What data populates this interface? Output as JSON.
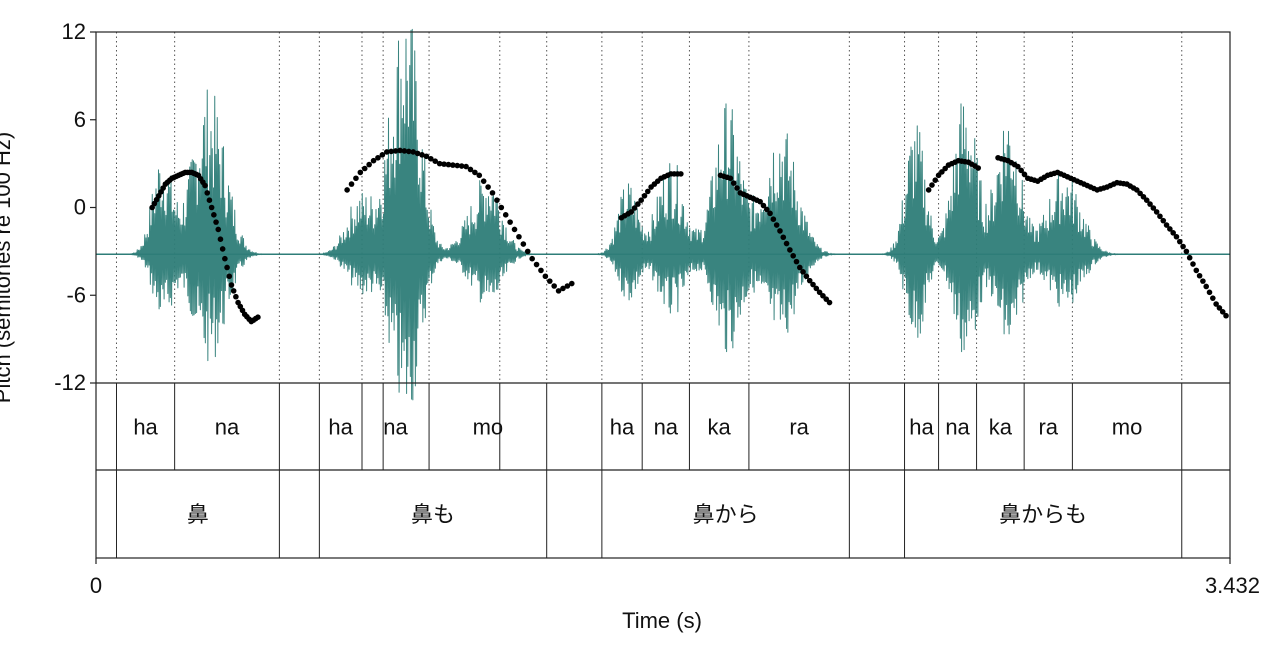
{
  "chart_data": {
    "type": "line",
    "xlabel": "Time (s)",
    "ylabel": "Pitch (semitones re 100 Hz)",
    "xlim": [
      0,
      3.432
    ],
    "ylim": [
      -12,
      12
    ],
    "x_tick_labels": [
      "0",
      "3.432"
    ],
    "y_ticks": [
      12,
      6,
      0,
      -6,
      -12
    ],
    "y_tick_labels": [
      "12",
      "6",
      "0",
      "-6",
      "-12"
    ],
    "grid": false,
    "waveform_color": "#2e7d78",
    "pitch_color": "#000000",
    "waveform_baseline": -3.2,
    "waveform_bursts": [
      {
        "t": 0.2,
        "w": 0.03,
        "a": 8.5
      },
      {
        "t": 0.33,
        "w": 0.045,
        "a": 11.5
      },
      {
        "t": 0.38,
        "w": 0.04,
        "a": 4.0
      },
      {
        "t": 0.8,
        "w": 0.04,
        "a": 5.0
      },
      {
        "t": 0.92,
        "w": 0.04,
        "a": 15.0
      },
      {
        "t": 0.96,
        "w": 0.035,
        "a": 9.0
      },
      {
        "t": 1.17,
        "w": 0.05,
        "a": 5.0
      },
      {
        "t": 1.2,
        "w": 0.03,
        "a": 2.5
      },
      {
        "t": 1.61,
        "w": 0.03,
        "a": 6.0
      },
      {
        "t": 1.74,
        "w": 0.04,
        "a": 8.0
      },
      {
        "t": 1.91,
        "w": 0.04,
        "a": 12.5
      },
      {
        "t": 2.07,
        "w": 0.05,
        "a": 11.0
      },
      {
        "t": 2.48,
        "w": 0.03,
        "a": 11.0
      },
      {
        "t": 2.63,
        "w": 0.035,
        "a": 13.5
      },
      {
        "t": 2.76,
        "w": 0.035,
        "a": 12.5
      },
      {
        "t": 2.93,
        "w": 0.05,
        "a": 7.0
      }
    ],
    "pitch_segments": [
      {
        "x": [
          0.17,
          0.19,
          0.21,
          0.23,
          0.25,
          0.27,
          0.29,
          0.31,
          0.33,
          0.35,
          0.37,
          0.39,
          0.41,
          0.43,
          0.45,
          0.47,
          0.49
        ],
        "y": [
          0.0,
          0.8,
          1.6,
          2.0,
          2.2,
          2.4,
          2.4,
          2.2,
          1.5,
          0.0,
          -1.5,
          -3.5,
          -5.3,
          -6.5,
          -7.3,
          -7.8,
          -7.5
        ]
      },
      {
        "x": [
          0.76,
          0.8,
          0.84,
          0.88,
          0.92,
          0.96,
          1.0,
          1.04,
          1.08,
          1.12,
          1.16,
          1.2,
          1.24,
          1.28,
          1.32,
          1.36,
          1.4,
          1.44
        ],
        "y": [
          1.2,
          2.4,
          3.2,
          3.8,
          3.9,
          3.8,
          3.5,
          3.0,
          2.9,
          2.8,
          2.2,
          1.0,
          -0.5,
          -2.0,
          -3.5,
          -4.7,
          -5.7,
          -5.2
        ]
      },
      {
        "x": [
          1.59,
          1.62,
          1.65,
          1.68,
          1.71,
          1.74,
          1.77
        ],
        "y": [
          -0.7,
          -0.3,
          0.5,
          1.4,
          2.0,
          2.3,
          2.3
        ]
      },
      {
        "x": [
          1.89,
          1.92,
          1.95,
          1.98,
          2.01,
          2.04,
          2.07,
          2.1,
          2.13,
          2.16,
          2.19,
          2.22
        ],
        "y": [
          2.2,
          2.0,
          1.0,
          0.7,
          0.4,
          -0.4,
          -1.6,
          -2.9,
          -4.1,
          -5.0,
          -5.8,
          -6.5
        ]
      },
      {
        "x": [
          2.52,
          2.55,
          2.58,
          2.61,
          2.64,
          2.67
        ],
        "y": [
          1.2,
          2.2,
          2.9,
          3.2,
          3.1,
          2.7
        ]
      },
      {
        "x": [
          2.73,
          2.76,
          2.79,
          2.82,
          2.85,
          2.88,
          2.91,
          2.94,
          2.97,
          3.0,
          3.03,
          3.06,
          3.09,
          3.12,
          3.15,
          3.18,
          3.21,
          3.24,
          3.27,
          3.3,
          3.33,
          3.36,
          3.39,
          3.42
        ],
        "y": [
          3.4,
          3.2,
          2.8,
          2.0,
          1.8,
          2.2,
          2.4,
          2.1,
          1.8,
          1.5,
          1.2,
          1.4,
          1.7,
          1.6,
          1.2,
          0.5,
          -0.3,
          -1.2,
          -2.0,
          -3.0,
          -4.3,
          -5.4,
          -6.6,
          -7.4
        ]
      }
    ],
    "syllable_tier": {
      "boundaries": [
        0.062,
        0.238,
        0.555,
        0.676,
        0.869,
        1.222,
        1.531,
        1.653,
        1.796,
        1.976,
        2.28,
        2.447,
        2.55,
        2.665,
        2.809,
        2.955,
        3.286
      ],
      "intervals": [
        {
          "label": "ha",
          "start": 0.062,
          "end": 0.238
        },
        {
          "label": "na",
          "start": 0.238,
          "end": 0.555
        },
        {
          "label": "ha",
          "start": 0.676,
          "end": 0.805
        },
        {
          "label": "na",
          "start": 0.805,
          "end": 1.008
        },
        {
          "label": "mo",
          "start": 1.008,
          "end": 1.364
        },
        {
          "label": "ha",
          "start": 1.531,
          "end": 1.653
        },
        {
          "label": "na",
          "start": 1.653,
          "end": 1.796
        },
        {
          "label": "ka",
          "start": 1.796,
          "end": 1.976
        },
        {
          "label": "ra",
          "start": 1.976,
          "end": 2.28
        },
        {
          "label": "ha",
          "start": 2.447,
          "end": 2.55
        },
        {
          "label": "na",
          "start": 2.55,
          "end": 2.665
        },
        {
          "label": "ka",
          "start": 2.665,
          "end": 2.809
        },
        {
          "label": "ra",
          "start": 2.809,
          "end": 2.955
        },
        {
          "label": "mo",
          "start": 2.955,
          "end": 3.286
        }
      ],
      "extra_boundaries": [
        0.805,
        1.008,
        1.364
      ]
    },
    "word_tier": {
      "boundaries": [
        0.062,
        0.555,
        0.676,
        1.364,
        1.531,
        2.28,
        2.447,
        3.286
      ],
      "intervals": [
        {
          "label": "鼻",
          "start": 0.062,
          "end": 0.555
        },
        {
          "label": "鼻も",
          "start": 0.676,
          "end": 1.364
        },
        {
          "label": "鼻から",
          "start": 1.531,
          "end": 2.28
        },
        {
          "label": "鼻からも",
          "start": 2.447,
          "end": 3.286
        }
      ]
    }
  }
}
